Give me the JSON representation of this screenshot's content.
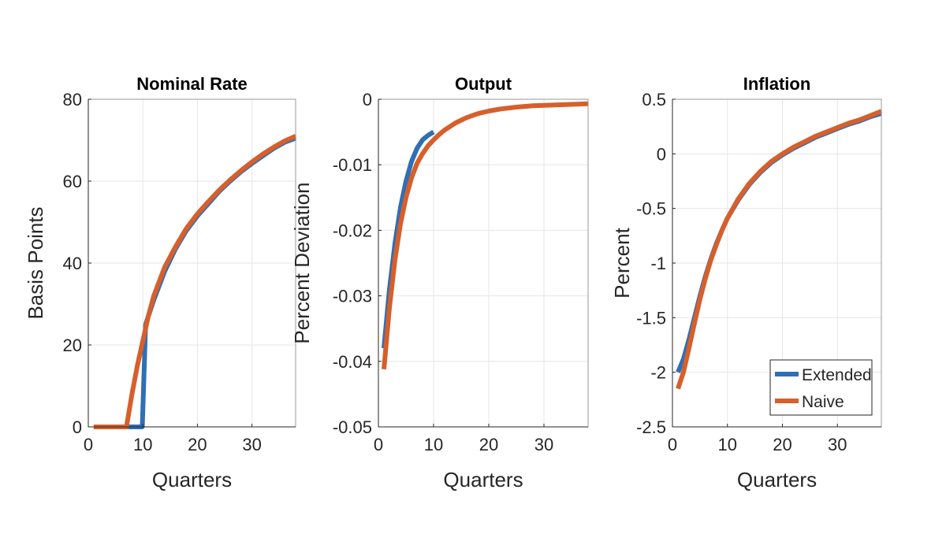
{
  "colors": {
    "extended": "#2f6fb5",
    "naive": "#d65f2b",
    "grid": "#e6e6e6",
    "axis": "#262626"
  },
  "legend": {
    "placement": "bottom-right of Inflation panel",
    "entries": [
      "Extended",
      "Naive"
    ]
  },
  "chart_data": [
    {
      "type": "line",
      "title": "Nominal Rate",
      "xlabel": "Quarters",
      "ylabel": "Basis Points",
      "xlim": [
        0,
        38
      ],
      "ylim": [
        0,
        80
      ],
      "xticks": [
        0,
        10,
        20,
        30
      ],
      "yticks": [
        0,
        20,
        40,
        60,
        80
      ],
      "yticklabels": [
        "0",
        "20",
        "40",
        "60",
        "80"
      ],
      "grid": true,
      "series": [
        {
          "name": "Extended",
          "x": [
            1,
            2,
            3,
            4,
            5,
            6,
            7,
            8,
            9,
            9.9,
            10.5,
            12,
            14,
            16,
            18,
            20,
            22,
            24,
            26,
            28,
            30,
            32,
            34,
            36,
            38
          ],
          "y": [
            0,
            0,
            0,
            0,
            0,
            0,
            0,
            0,
            0,
            0,
            25,
            31,
            38,
            43.5,
            48,
            51.5,
            54.5,
            57.5,
            60,
            62.3,
            64.3,
            66.2,
            68,
            69.5,
            70.5
          ]
        },
        {
          "name": "Naive",
          "x": [
            1,
            2,
            3,
            4,
            5,
            6,
            7,
            8,
            9,
            10,
            11,
            12,
            14,
            16,
            18,
            20,
            22,
            24,
            26,
            28,
            30,
            32,
            34,
            36,
            38
          ],
          "y": [
            0,
            0,
            0,
            0,
            0,
            0,
            0,
            8,
            15,
            21,
            27,
            32,
            39,
            44,
            48.5,
            52,
            55,
            57.8,
            60.3,
            62.6,
            64.7,
            66.6,
            68.3,
            69.8,
            71
          ]
        }
      ]
    },
    {
      "type": "line",
      "title": "Output",
      "xlabel": "Quarters",
      "ylabel": "Percent Deviation",
      "xlim": [
        0,
        38
      ],
      "ylim": [
        -0.05,
        0
      ],
      "xticks": [
        0,
        10,
        20,
        30
      ],
      "yticks": [
        -0.05,
        -0.04,
        -0.03,
        -0.02,
        -0.01,
        0
      ],
      "yticklabels": [
        "-0.05",
        "-0.04",
        "-0.03",
        "-0.02",
        "-0.01",
        "0"
      ],
      "grid": true,
      "series": [
        {
          "name": "Extended",
          "x": [
            1,
            2,
            3,
            4,
            5,
            6,
            7,
            8,
            9,
            10
          ],
          "y": [
            -0.038,
            -0.029,
            -0.022,
            -0.0165,
            -0.0125,
            -0.0095,
            -0.0075,
            -0.0062,
            -0.0055,
            -0.005
          ]
        },
        {
          "name": "Naive",
          "x": [
            1,
            2,
            3,
            4,
            5,
            6,
            7,
            8,
            9,
            10,
            11,
            12,
            14,
            16,
            18,
            20,
            22,
            25,
            28,
            31,
            34,
            38
          ],
          "y": [
            -0.0412,
            -0.0318,
            -0.0245,
            -0.019,
            -0.015,
            -0.012,
            -0.0098,
            -0.0083,
            -0.0071,
            -0.0062,
            -0.0054,
            -0.0047,
            -0.0036,
            -0.0028,
            -0.0022,
            -0.0018,
            -0.0015,
            -0.0012,
            -0.001,
            -0.0009,
            -0.0008,
            -0.0007
          ]
        }
      ]
    },
    {
      "type": "line",
      "title": "Inflation",
      "xlabel": "Quarters",
      "ylabel": "Percent",
      "xlim": [
        0,
        38
      ],
      "ylim": [
        -2.5,
        0.5
      ],
      "xticks": [
        0,
        10,
        20,
        30
      ],
      "yticks": [
        -2.5,
        -2,
        -1.5,
        -1,
        -0.5,
        0,
        0.5
      ],
      "yticklabels": [
        "-2.5",
        "-2",
        "-1.5",
        "-1",
        "-0.5",
        "0",
        "0.5"
      ],
      "grid": true,
      "series": [
        {
          "name": "Extended",
          "x": [
            1,
            2,
            3,
            4,
            5,
            6,
            7,
            8,
            9,
            10,
            12,
            14,
            16,
            18,
            20,
            22,
            24,
            26,
            28,
            30,
            32,
            34,
            36,
            38
          ],
          "y": [
            -2.0,
            -1.88,
            -1.7,
            -1.5,
            -1.3,
            -1.12,
            -0.96,
            -0.82,
            -0.7,
            -0.59,
            -0.42,
            -0.28,
            -0.17,
            -0.08,
            -0.01,
            0.05,
            0.1,
            0.15,
            0.19,
            0.23,
            0.27,
            0.3,
            0.34,
            0.37
          ]
        },
        {
          "name": "Naive",
          "x": [
            1,
            2,
            3,
            4,
            5,
            6,
            7,
            8,
            9,
            10,
            12,
            14,
            16,
            18,
            20,
            22,
            24,
            26,
            28,
            30,
            32,
            34,
            36,
            38
          ],
          "y": [
            -2.15,
            -2.0,
            -1.78,
            -1.55,
            -1.33,
            -1.14,
            -0.97,
            -0.83,
            -0.7,
            -0.59,
            -0.41,
            -0.27,
            -0.16,
            -0.07,
            0.0,
            0.06,
            0.11,
            0.16,
            0.2,
            0.24,
            0.28,
            0.31,
            0.35,
            0.39
          ]
        }
      ]
    }
  ]
}
